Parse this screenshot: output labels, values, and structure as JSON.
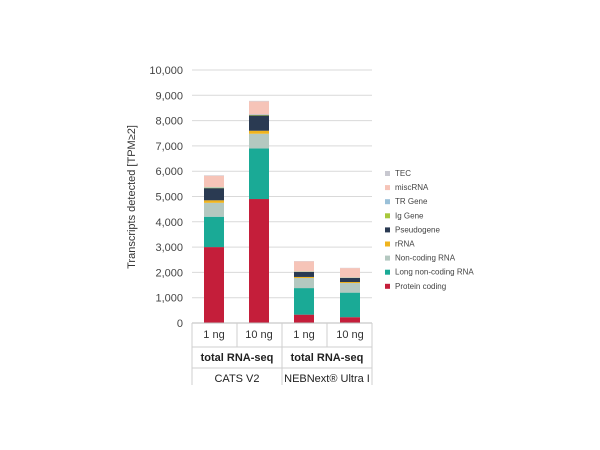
{
  "chart_data": {
    "type": "bar",
    "stacked": true,
    "ylabel": "Transcripts detected [TPM≥2]",
    "ylim": [
      0,
      10000
    ],
    "yticks": [
      "0",
      "1,000",
      "2,000",
      "3,000",
      "4,000",
      "5,000",
      "6,000",
      "7,000",
      "8,000",
      "9,000",
      "10,000"
    ],
    "ytick_values": [
      0,
      1000,
      2000,
      3000,
      4000,
      5000,
      6000,
      7000,
      8000,
      9000,
      10000
    ],
    "categories": [
      "1 ng",
      "10 ng",
      "1 ng",
      "10 ng"
    ],
    "groups": [
      {
        "label": "total RNA-seq",
        "super": "CATS V2"
      },
      {
        "label": "total RNA-seq",
        "super": "NEBNext® Ultra I"
      }
    ],
    "grid": true,
    "legend_position": "right",
    "series": [
      {
        "name": "Protein coding",
        "color": "#c41e3a",
        "values": [
          3000,
          4900,
          330,
          230
        ]
      },
      {
        "name": "Long non-coding RNA",
        "color": "#1aaa96",
        "values": [
          1200,
          2000,
          1050,
          970
        ]
      },
      {
        "name": "Non-coding RNA",
        "color": "#b4c8c0",
        "values": [
          550,
          580,
          400,
          380
        ]
      },
      {
        "name": "rRNA",
        "color": "#f0b41e",
        "values": [
          100,
          120,
          40,
          40
        ]
      },
      {
        "name": "Pseudogene",
        "color": "#2a3a52",
        "values": [
          480,
          600,
          200,
          160
        ]
      },
      {
        "name": "Ig Gene",
        "color": "#a8c83c",
        "values": [
          20,
          20,
          10,
          10
        ]
      },
      {
        "name": "TR Gene",
        "color": "#9ac0d8",
        "values": [
          20,
          20,
          10,
          10
        ]
      },
      {
        "name": "miscRNA",
        "color": "#f6c4b8",
        "values": [
          450,
          520,
          400,
          370
        ]
      },
      {
        "name": "TEC",
        "color": "#c8c8d0",
        "values": [
          20,
          20,
          10,
          10
        ]
      }
    ]
  }
}
